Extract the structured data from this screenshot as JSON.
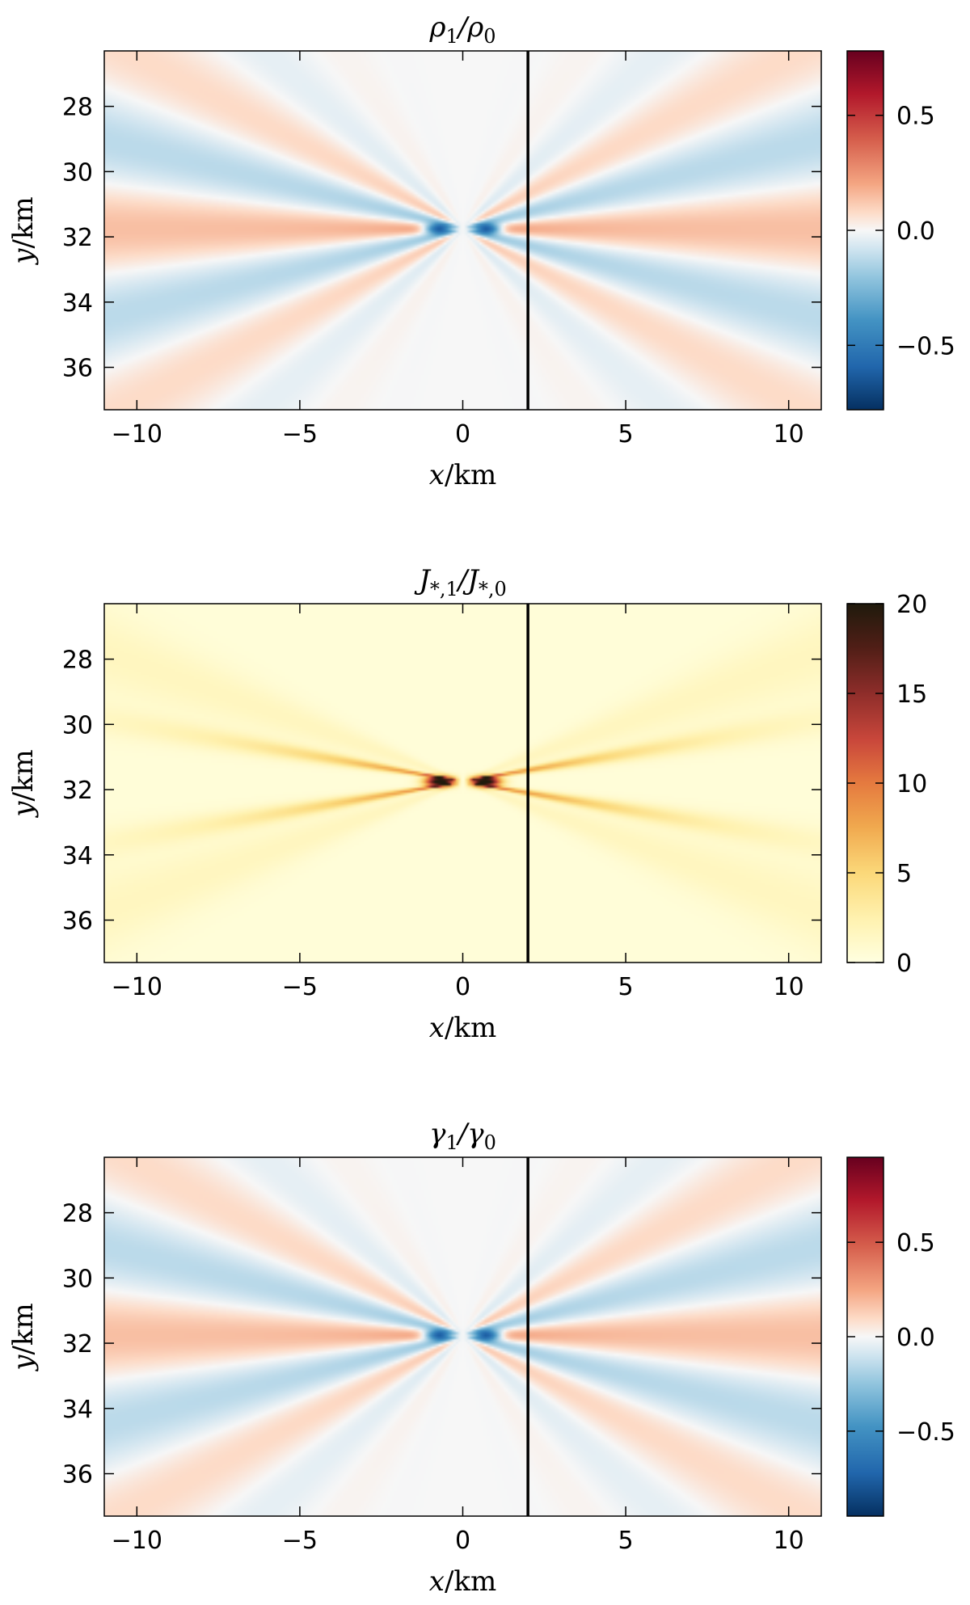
{
  "chart_data": [
    {
      "type": "heatmap",
      "title_sym": "ρ",
      "title_num_sub": "1",
      "title_den_sym": "ρ",
      "title_den_sub": "0",
      "xlabel": "x/km",
      "ylabel": "y/km",
      "xlim": [
        -11,
        11
      ],
      "ylim": [
        37.3,
        26.3
      ],
      "xticks": [
        "−10",
        "−5",
        "0",
        "5",
        "10"
      ],
      "xtick_values": [
        -10,
        -5,
        0,
        5,
        10
      ],
      "yticks": [
        "28",
        "30",
        "32",
        "34",
        "36"
      ],
      "ytick_values": [
        28,
        30,
        32,
        34,
        36
      ],
      "colorbar_ticks": [
        "0.5",
        "0.0",
        "−0.5"
      ],
      "colorbar_tick_values": [
        0.5,
        0.0,
        -0.5
      ],
      "colorbar_range": [
        -0.78,
        0.78
      ],
      "colormap": "RdBu_r",
      "vline_x": 2,
      "source_center": [
        0,
        31.75
      ]
    },
    {
      "type": "heatmap",
      "title_sym": "J",
      "title_num_sub": "*,1",
      "title_den_sym": "J",
      "title_den_sub": "*,0",
      "xlabel": "x/km",
      "ylabel": "y/km",
      "xlim": [
        -11,
        11
      ],
      "ylim": [
        37.3,
        26.3
      ],
      "xticks": [
        "−10",
        "−5",
        "0",
        "5",
        "10"
      ],
      "xtick_values": [
        -10,
        -5,
        0,
        5,
        10
      ],
      "yticks": [
        "28",
        "30",
        "32",
        "34",
        "36"
      ],
      "ytick_values": [
        28,
        30,
        32,
        34,
        36
      ],
      "colorbar_ticks": [
        "20",
        "15",
        "10",
        "5",
        "0"
      ],
      "colorbar_tick_values": [
        20,
        15,
        10,
        5,
        0
      ],
      "colorbar_range": [
        0,
        20
      ],
      "colormap": "YlOrBr-dark",
      "vline_x": 2,
      "source_center": [
        0,
        31.75
      ]
    },
    {
      "type": "heatmap",
      "title_sym": "γ",
      "title_num_sub": "1",
      "title_den_sym": "γ",
      "title_den_sub": "0",
      "xlabel": "x/km",
      "ylabel": "y/km",
      "xlim": [
        -11,
        11
      ],
      "ylim": [
        37.3,
        26.3
      ],
      "xticks": [
        "−10",
        "−5",
        "0",
        "5",
        "10"
      ],
      "xtick_values": [
        -10,
        -5,
        0,
        5,
        10
      ],
      "yticks": [
        "28",
        "30",
        "32",
        "34",
        "36"
      ],
      "ytick_values": [
        28,
        30,
        32,
        34,
        36
      ],
      "colorbar_ticks": [
        "0.5",
        "0.0",
        "−0.5"
      ],
      "colorbar_tick_values": [
        0.5,
        0.0,
        -0.5
      ],
      "colorbar_range": [
        -0.95,
        0.95
      ],
      "colormap": "RdBu_r",
      "vline_x": 2,
      "source_center": [
        0,
        31.75
      ]
    }
  ]
}
